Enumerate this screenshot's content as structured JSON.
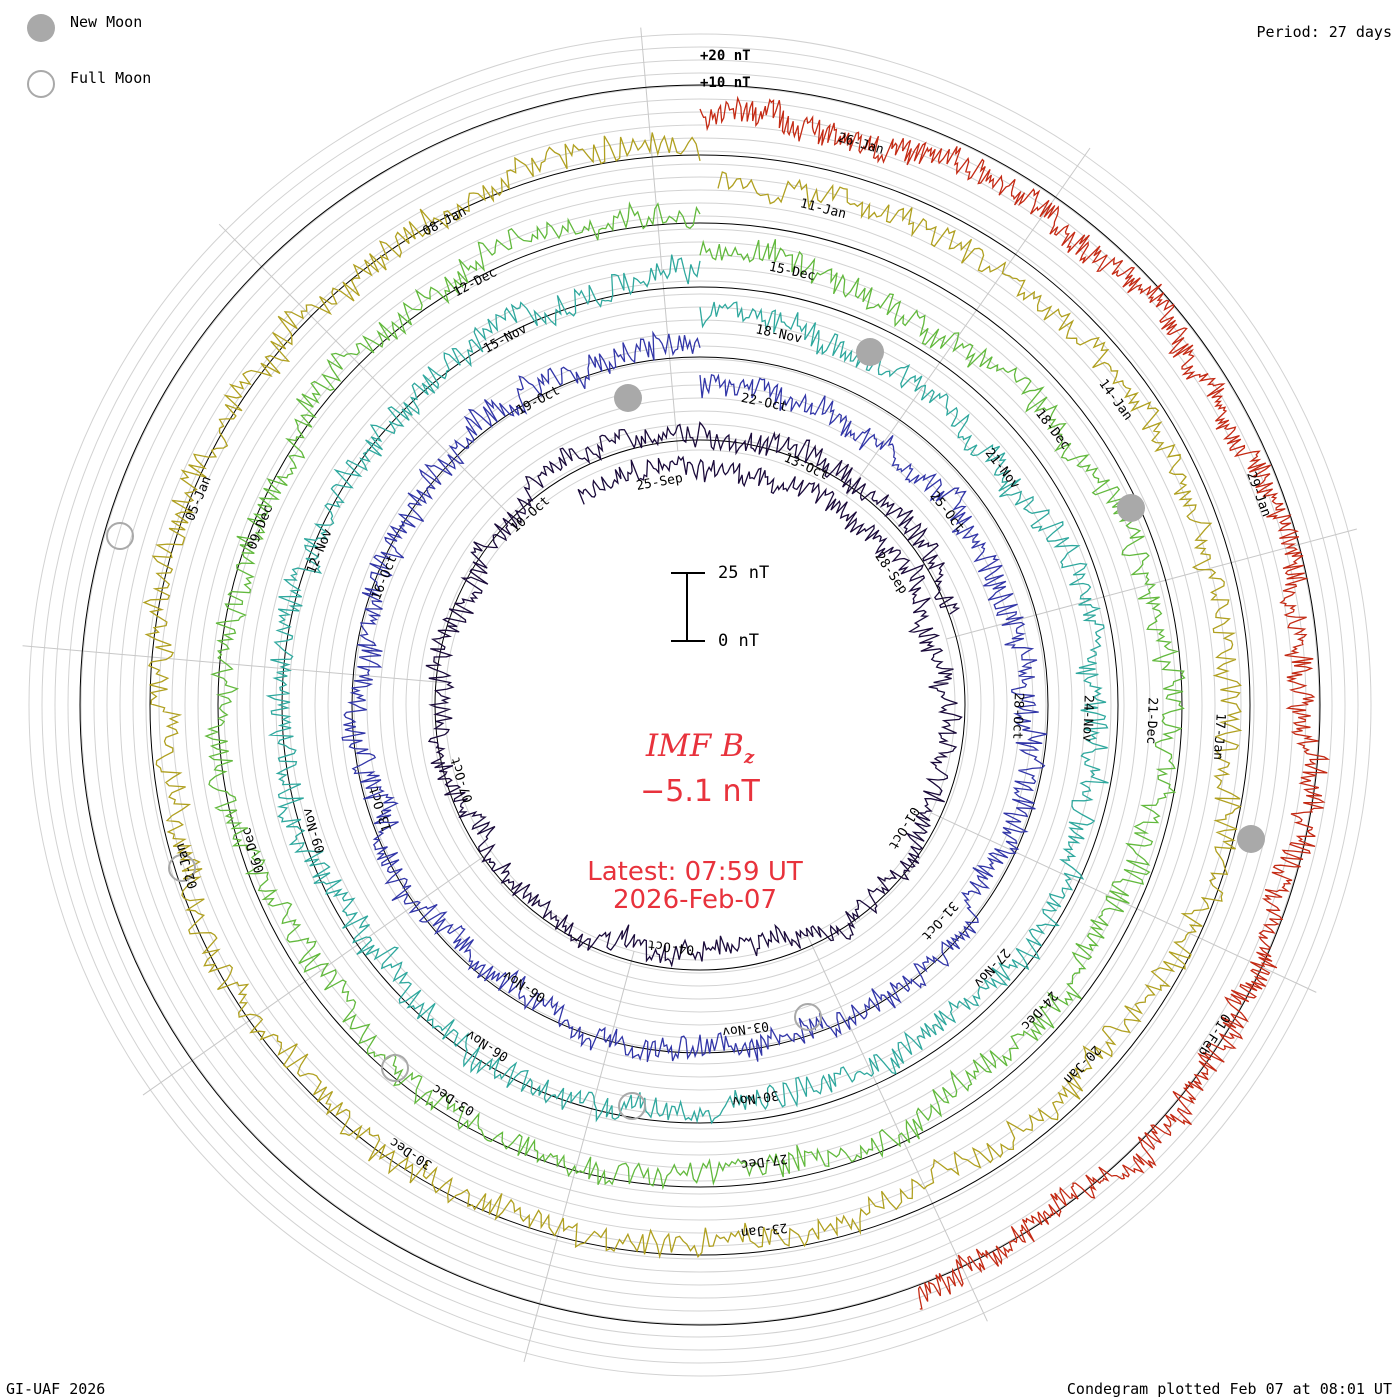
{
  "legend": {
    "new_moon_label": "New Moon",
    "full_moon_label": "Full Moon",
    "new_moon_color": "#a9a9a9"
  },
  "period_label": "Period: 27 days",
  "ring_labels": [
    "+20 nT",
    "+10 nT"
  ],
  "scale_bar": {
    "top_label": "25 nT",
    "bottom_label": "0 nT"
  },
  "center": {
    "title": "IMF B",
    "title_sub": "z",
    "value": "−5.1 nT",
    "latest": "Latest: 07:59 UT",
    "date": "2026-Feb-07",
    "color": "#e8323c"
  },
  "footer": {
    "left": "GI-UAF 2026",
    "right": "Condegram plotted Feb 07 at 08:01 UT"
  },
  "chart_data": {
    "type": "condegram",
    "title": "IMF Bz",
    "period_days": 27,
    "start_date": "2025-Sep-18",
    "end_date": "2026-Feb-07",
    "units": "nT",
    "latest_value_nT": -5.1,
    "series": [
      {
        "cycle": 1,
        "color": "#1a0a3a",
        "date_labels": [
          "25-Sep",
          "28-Sep",
          "01-Oct",
          "04-Oct",
          "07-Oct",
          "10-Oct",
          "13-Oct"
        ]
      },
      {
        "cycle": 2,
        "color": "#3236a8",
        "date_labels": [
          "22-Oct",
          "25-Oct",
          "28-Oct",
          "31-Oct",
          "03-Nov",
          "06-Nov",
          "13-Oct",
          "16-Oct",
          "19-Oct"
        ]
      },
      {
        "cycle": 3,
        "color": "#2fa89e",
        "date_labels": [
          "18-Nov",
          "21-Nov",
          "24-Nov",
          "27-Nov",
          "30-Nov",
          "06-Nov",
          "09-Nov",
          "12-Nov",
          "15-Nov"
        ]
      },
      {
        "cycle": 4,
        "color": "#62b93d",
        "date_labels": [
          "15-Dec",
          "18-Dec",
          "21-Dec",
          "24-Dec",
          "27-Dec",
          "03-Dec",
          "06-Dec",
          "09-Dec",
          "12-Dec"
        ]
      },
      {
        "cycle": 5,
        "color": "#b0a020",
        "date_labels": [
          "11-Jan",
          "14-Jan",
          "17-Jan",
          "20-Jan",
          "23-Jan",
          "30-Dec",
          "02-Jan",
          "05-Jan",
          "08-Jan"
        ]
      },
      {
        "cycle": 6,
        "color": "#c42a14",
        "date_labels": [
          "26-Jan",
          "29-Jan",
          "01-Feb"
        ]
      }
    ],
    "new_moon_dates": [
      "21-Oct",
      "20-Nov",
      "20-Dec",
      "18-Jan"
    ],
    "full_moon_dates": [
      "07-Oct",
      "05-Nov",
      "04-Dec",
      "03-Jan",
      "01-Feb"
    ],
    "scale_nT": [
      0,
      25
    ]
  }
}
